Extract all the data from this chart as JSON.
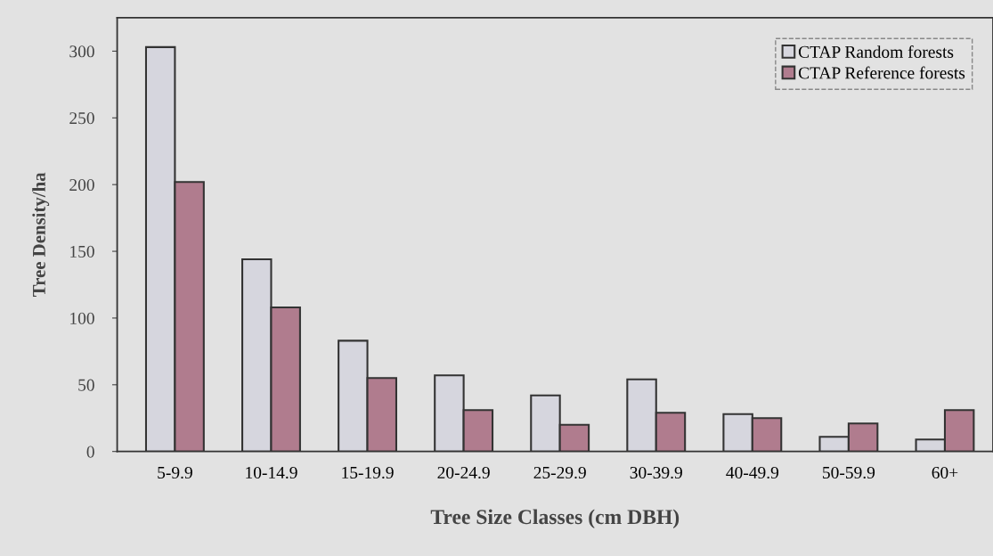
{
  "chart_data": {
    "type": "bar",
    "xlabel": "Tree Size Classes (cm DBH)",
    "ylabel": "Tree Density/ha",
    "categories": [
      "5-9.9",
      "10-14.9",
      "15-19.9",
      "20-24.9",
      "25-29.9",
      "30-39.9",
      "40-49.9",
      "50-59.9",
      "60+"
    ],
    "series": [
      {
        "name": "CTAP Random forests",
        "color": "#d6d6de",
        "values": [
          303,
          144,
          83,
          57,
          42,
          54,
          28,
          11,
          9
        ]
      },
      {
        "name": "CTAP Reference forests",
        "color": "#b07c8e",
        "values": [
          202,
          108,
          55,
          31,
          20,
          29,
          25,
          21,
          31
        ]
      }
    ],
    "ylim": [
      0,
      325
    ],
    "yticks": [
      0,
      50,
      100,
      150,
      200,
      250,
      300
    ],
    "grid": false,
    "legend": "top right"
  }
}
